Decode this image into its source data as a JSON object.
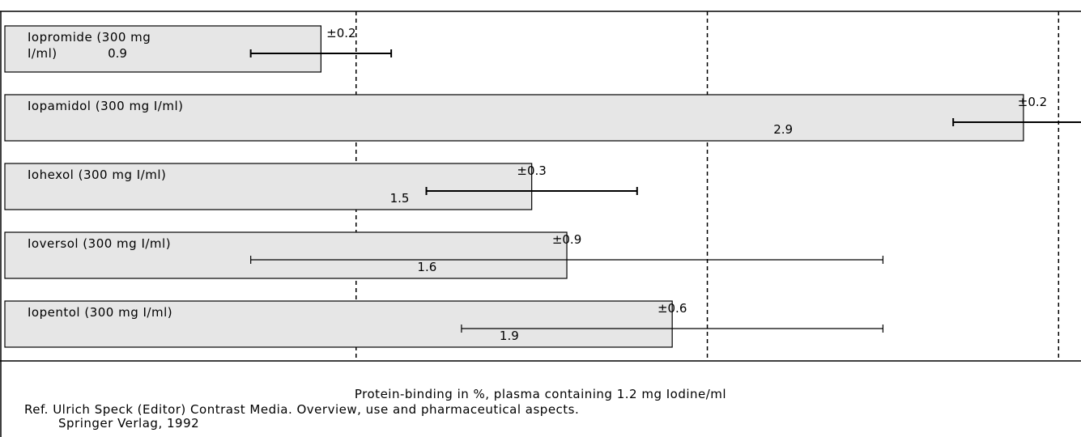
{
  "chart_data": {
    "type": "bar",
    "orientation": "horizontal",
    "categories": [
      "Iopromide (300 mg I/ml)",
      "Iopamidol (300 mg I/ml)",
      "Iohexol (300 mg I/ml)",
      "Ioversol (300 mg I/ml)",
      "Iopentol (300 mg I/ml)"
    ],
    "category_lines": [
      [
        "Iopromide (300 mg",
        "I/ml)"
      ],
      [
        "Iopamidol (300 mg I/ml)"
      ],
      [
        "Iohexol (300 mg I/ml)"
      ],
      [
        "Ioversol (300 mg I/ml)"
      ],
      [
        "Iopentol (300 mg I/ml)"
      ]
    ],
    "values": [
      0.9,
      2.9,
      1.5,
      1.6,
      1.9
    ],
    "value_labels": [
      "0.9",
      "2.9",
      "1.5",
      "1.6",
      "1.9"
    ],
    "error_labels": [
      "±0.2",
      "±0.2",
      "±0.3",
      "±0.9",
      "±0.6"
    ],
    "error_bars": [
      {
        "low": 0.7,
        "high": 1.1
      },
      {
        "low": 2.7,
        "high": 3.1
      },
      {
        "low": 1.2,
        "high": 1.8
      },
      {
        "low": 0.7,
        "high": 2.5
      },
      {
        "low": 1.3,
        "high": 2.5
      }
    ],
    "xlim": [
      0,
      3.05
    ],
    "gridlines": [
      1,
      2,
      3
    ],
    "grid": true,
    "bar_color": "#e6e6e6",
    "title": "Protein-binding in %, plasma containing 1.2 mg Iodine/ml"
  },
  "caption": {
    "title": "Protein-binding in %, plasma containing 1.2 mg Iodine/ml",
    "reference": "Ref.  Ulrich Speck (Editor) Contrast Media. Overview, use and pharmaceutical aspects.",
    "publisher": "Springer Verlag, 1992"
  }
}
